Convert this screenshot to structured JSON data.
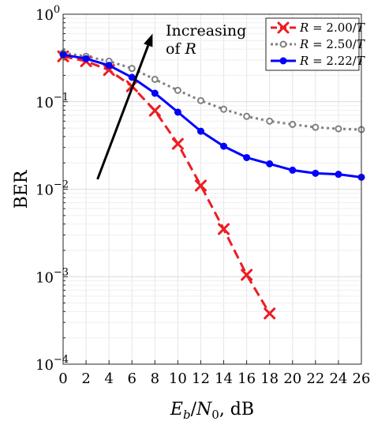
{
  "chart_data": {
    "type": "line",
    "title": "",
    "xlabel": "E_b/N_0, dB",
    "ylabel": "BER",
    "xlim": [
      0,
      26
    ],
    "ylim": [
      0.0001,
      1
    ],
    "yscale": "log",
    "grid": true,
    "legend_position": "top-right",
    "x_ticks": [
      "0",
      "2",
      "4",
      "6",
      "8",
      "10",
      "12",
      "14",
      "16",
      "18",
      "20",
      "22",
      "24",
      "26"
    ],
    "y_tick_labels": [
      {
        "base": "10",
        "exp": "0",
        "value": 1
      },
      {
        "base": "10",
        "exp": "−1",
        "value": 0.1
      },
      {
        "base": "10",
        "exp": "−2",
        "value": 0.01
      },
      {
        "base": "10",
        "exp": "−3",
        "value": 0.001
      },
      {
        "base": "10",
        "exp": "−4",
        "value": 0.0001
      }
    ],
    "annotation": {
      "line1": "Increasing",
      "line2_prefix": "of ",
      "line2_italic": "R",
      "arrow_from": {
        "x": 3.0,
        "y": 0.013
      },
      "arrow_to": {
        "x": 7.8,
        "y": 0.6
      }
    },
    "series": [
      {
        "name": "R = 2.00/T",
        "legend_var": "R",
        "legend_eq": " = 2.00/",
        "legend_unit": "T",
        "color": "#ee1c24",
        "style": "dashed",
        "marker": "x",
        "x": [
          0,
          2,
          4,
          6,
          8,
          10,
          12,
          14,
          16,
          18
        ],
        "y": [
          0.33,
          0.29,
          0.23,
          0.15,
          0.079,
          0.033,
          0.011,
          0.0035,
          0.00105,
          0.00038
        ]
      },
      {
        "name": "R = 2.50/T",
        "legend_var": "R",
        "legend_eq": " = 2.50/",
        "legend_unit": "T",
        "color": "#808080",
        "style": "dotted",
        "marker": "o-open",
        "x": [
          0,
          2,
          4,
          6,
          8,
          10,
          12,
          14,
          16,
          18,
          20,
          22,
          24,
          26
        ],
        "y": [
          0.36,
          0.33,
          0.29,
          0.24,
          0.18,
          0.135,
          0.103,
          0.082,
          0.068,
          0.06,
          0.055,
          0.051,
          0.049,
          0.048
        ]
      },
      {
        "name": "R = 2.22/T",
        "legend_var": "R",
        "legend_eq": " = 2.22/",
        "legend_unit": "T",
        "color": "#0000ff",
        "style": "solid",
        "marker": "o-filled",
        "x": [
          0,
          2,
          4,
          6,
          8,
          10,
          12,
          14,
          16,
          18,
          20,
          22,
          24,
          26
        ],
        "y": [
          0.345,
          0.31,
          0.26,
          0.19,
          0.125,
          0.076,
          0.046,
          0.031,
          0.023,
          0.0195,
          0.0165,
          0.0152,
          0.0148,
          0.0137
        ]
      }
    ]
  }
}
